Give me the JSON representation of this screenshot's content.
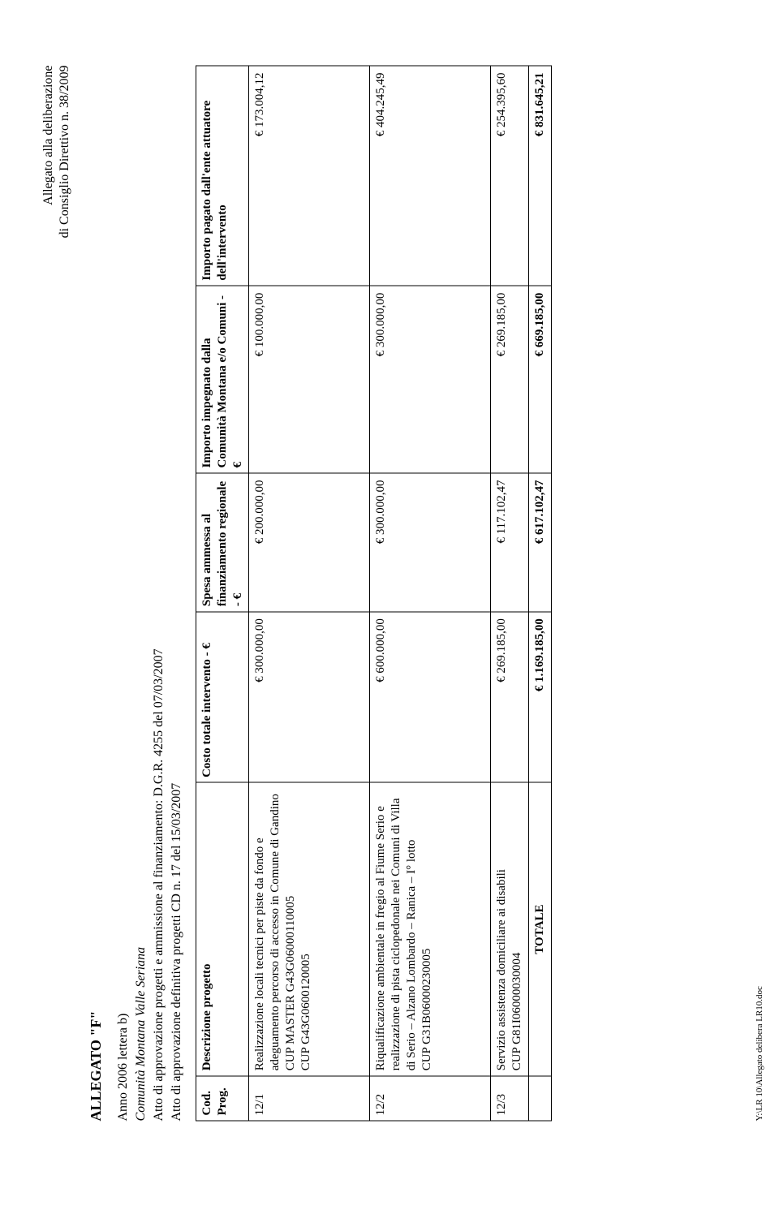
{
  "header": {
    "line1": "Allegato alla deliberazione",
    "line2": "di Consiglio Direttivo n.  38/2009"
  },
  "title": "ALLEGATO \"F\"",
  "meta": {
    "anno": "Anno 2006 lettera b)",
    "comunita": "Comunità Montana Valle Seriana",
    "atto1": "Atto di approvazione progetti e ammissione al finanziamento: D.G.R. 4255 del 07/03/2007",
    "atto2": "Atto di approvazione definitiva progetti CD n. 17 del 15/03/2007"
  },
  "table": {
    "columns": {
      "code": "Cod. Prog.",
      "desc": "Descrizione progetto",
      "cost": "Costo totale intervento - €",
      "spesa": "Spesa ammessa al finanziamento regionale - €",
      "imp": "Importo impegnato dalla Comunità Montana e/o Comuni - €",
      "pag": "Importo pagato dall'ente attuatore dell'intervento"
    },
    "rows": [
      {
        "code": "12/1",
        "desc": "Realizzazione locali tecnici per piste da fondo e adeguamento percorso di accesso in Comune di Gandino\nCUP MASTER G43G06000110005\nCUP  G43G0600120005",
        "cost": "€   300.000,00",
        "spesa": "€   200.000,00",
        "imp": "€   100.000,00",
        "pag": "€   173.004,12"
      },
      {
        "code": "12/2",
        "desc": "Riqualificazione ambientale in fregio al Fiume Serio e realizzazione di pista ciclopedonale nei Comuni di Villa di Serio – Alzano Lombardo – Ranica – I° lotto\nCUP  G31B06000230005",
        "cost": "€   600.000,00",
        "spesa": "€   300.000,00",
        "imp": "€   300.000,00",
        "pag": "€   404.245,49"
      },
      {
        "code": "12/3",
        "desc": "Servizio assistenza domiciliare ai disabili\nCUP  G81I06000030004",
        "cost": "€   269.185,00",
        "spesa": "€  117.102,47",
        "imp": "€   269.185,00",
        "pag": "€   254.395,60"
      }
    ],
    "totals": {
      "label": "TOTALE",
      "cost": "€   1.169.185,00",
      "spesa": "€   617.102,47",
      "imp": "€   669.185,00",
      "pag": "€   831.645,21"
    }
  },
  "footer_path": "Y:\\LR 10\\Allegato delibera LR10.doc",
  "style": {
    "text_color": "#000000",
    "background": "#ffffff",
    "border_color": "#000000",
    "base_font_size_pt": 12,
    "title_font_size_pt": 14
  }
}
